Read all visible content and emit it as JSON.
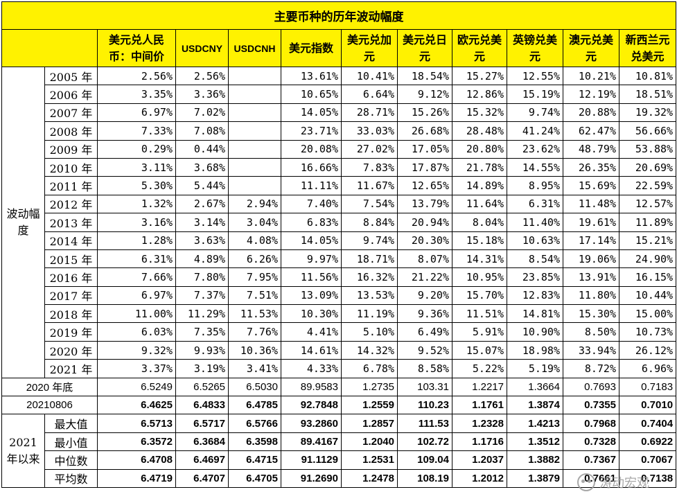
{
  "title": "主要币种的历年波动幅度",
  "headers": [
    "美元兑人民币：中间价",
    "USDCNY",
    "USDCNH",
    "美元指数",
    "美元兑加元",
    "美元兑日元",
    "欧元兑美元",
    "英镑兑美元",
    "澳元兑美元",
    "新西兰元兑美元"
  ],
  "group_volatility": "波动幅度",
  "volatility_rows": [
    {
      "year": "2005 年",
      "values": [
        "2.56%",
        "2.56%",
        "",
        "13.61%",
        "10.41%",
        "18.54%",
        "15.27%",
        "12.55%",
        "10.21%",
        "10.81%"
      ]
    },
    {
      "year": "2006 年",
      "values": [
        "3.35%",
        "3.36%",
        "",
        "10.65%",
        "6.64%",
        "9.12%",
        "12.86%",
        "15.19%",
        "12.19%",
        "18.51%"
      ]
    },
    {
      "year": "2007 年",
      "values": [
        "6.97%",
        "7.02%",
        "",
        "14.05%",
        "28.71%",
        "15.26%",
        "15.32%",
        "9.74%",
        "20.88%",
        "19.32%"
      ]
    },
    {
      "year": "2008 年",
      "values": [
        "7.33%",
        "7.08%",
        "",
        "23.71%",
        "33.03%",
        "26.68%",
        "28.48%",
        "41.24%",
        "62.47%",
        "56.66%"
      ]
    },
    {
      "year": "2009 年",
      "values": [
        "0.29%",
        "0.44%",
        "",
        "20.08%",
        "27.02%",
        "17.05%",
        "20.80%",
        "23.62%",
        "48.79%",
        "53.88%"
      ]
    },
    {
      "year": "2010 年",
      "values": [
        "3.11%",
        "3.68%",
        "",
        "16.66%",
        "7.83%",
        "17.87%",
        "21.78%",
        "14.55%",
        "26.35%",
        "20.69%"
      ]
    },
    {
      "year": "2011 年",
      "values": [
        "5.30%",
        "5.44%",
        "",
        "11.11%",
        "11.67%",
        "12.65%",
        "14.89%",
        "8.95%",
        "15.69%",
        "22.59%"
      ]
    },
    {
      "year": "2012 年",
      "values": [
        "1.32%",
        "2.67%",
        "2.94%",
        "7.40%",
        "7.54%",
        "13.79%",
        "11.64%",
        "6.31%",
        "11.48%",
        "12.57%"
      ]
    },
    {
      "year": "2013 年",
      "values": [
        "3.16%",
        "3.14%",
        "3.04%",
        "6.83%",
        "8.84%",
        "20.94%",
        "8.04%",
        "11.40%",
        "19.61%",
        "11.89%"
      ]
    },
    {
      "year": "2014 年",
      "values": [
        "1.28%",
        "3.63%",
        "4.08%",
        "14.05%",
        "9.74%",
        "20.30%",
        "15.18%",
        "10.63%",
        "17.14%",
        "15.21%"
      ]
    },
    {
      "year": "2015 年",
      "values": [
        "6.31%",
        "4.89%",
        "6.26%",
        "9.97%",
        "18.71%",
        "8.07%",
        "14.31%",
        "8.54%",
        "19.06%",
        "24.90%"
      ]
    },
    {
      "year": "2016 年",
      "values": [
        "7.66%",
        "7.80%",
        "7.95%",
        "11.56%",
        "16.32%",
        "21.22%",
        "10.95%",
        "23.85%",
        "13.91%",
        "16.15%"
      ]
    },
    {
      "year": "2017 年",
      "values": [
        "6.97%",
        "7.37%",
        "7.51%",
        "13.09%",
        "13.53%",
        "9.20%",
        "15.70%",
        "12.83%",
        "11.80%",
        "10.44%"
      ]
    },
    {
      "year": "2018 年",
      "values": [
        "11.00%",
        "11.29%",
        "11.53%",
        "10.30%",
        "11.19%",
        "9.36%",
        "11.51%",
        "14.81%",
        "15.30%",
        "15.00%"
      ]
    },
    {
      "year": "2019 年",
      "values": [
        "6.03%",
        "7.35%",
        "7.76%",
        "4.41%",
        "5.10%",
        "6.49%",
        "5.91%",
        "10.90%",
        "8.50%",
        "10.73%"
      ]
    },
    {
      "year": "2020 年",
      "values": [
        "9.32%",
        "9.93%",
        "10.36%",
        "14.61%",
        "14.32%",
        "9.52%",
        "15.07%",
        "18.98%",
        "33.94%",
        "26.12%"
      ]
    },
    {
      "year": "2021 年",
      "values": [
        "3.37%",
        "3.19%",
        "3.41%",
        "4.33%",
        "6.78%",
        "8.58%",
        "5.22%",
        "5.19%",
        "8.72%",
        "6.96%"
      ]
    }
  ],
  "row_2020_end": {
    "label": "2020 年底",
    "values": [
      "6.5249",
      "6.5265",
      "6.5030",
      "89.9583",
      "1.2735",
      "103.31",
      "1.2217",
      "1.3664",
      "0.7693",
      "0.7183"
    ]
  },
  "row_20210806": {
    "label": "20210806",
    "values": [
      "6.4625",
      "6.4833",
      "6.4785",
      "92.7848",
      "1.2559",
      "110.23",
      "1.1761",
      "1.3874",
      "0.7355",
      "0.7010"
    ]
  },
  "group_2021": "2021 年以来",
  "stats_rows": [
    {
      "label": "最大值",
      "values": [
        "6.5713",
        "6.5717",
        "6.5766",
        "93.2860",
        "1.2857",
        "111.53",
        "1.2328",
        "1.4213",
        "0.7968",
        "0.7404"
      ]
    },
    {
      "label": "最小值",
      "values": [
        "6.3572",
        "6.3684",
        "6.3598",
        "89.4167",
        "1.2040",
        "102.72",
        "1.1716",
        "1.3512",
        "0.7328",
        "0.6922"
      ]
    },
    {
      "label": "中位数",
      "values": [
        "6.4708",
        "6.4697",
        "6.4715",
        "91.1129",
        "1.2531",
        "109.04",
        "1.2037",
        "1.3882",
        "0.7367",
        "0.7067"
      ]
    },
    {
      "label": "平均数",
      "values": [
        "6.4719",
        "6.4707",
        "6.4705",
        "91.2690",
        "1.2478",
        "108.19",
        "1.2012",
        "1.3879",
        "0.7661",
        "0.7138"
      ]
    }
  ],
  "watermark": "涛动宏观"
}
